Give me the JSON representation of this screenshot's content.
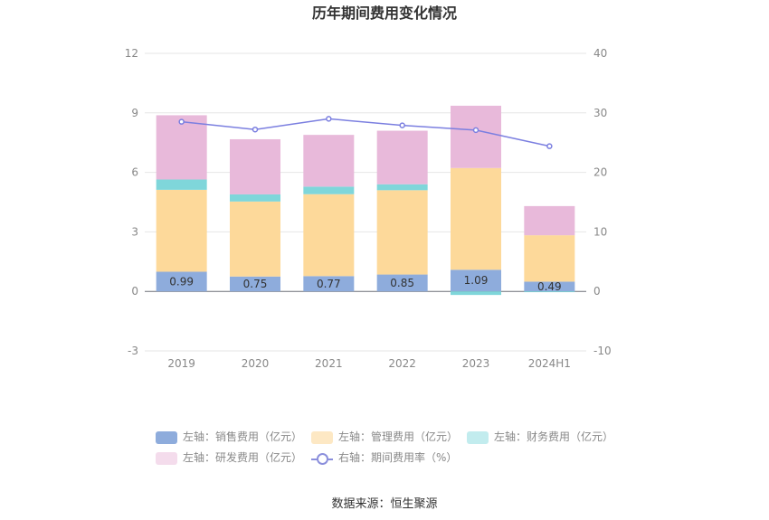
{
  "chart_data": {
    "type": "bar",
    "title": "历年期间费用变化情况",
    "categories": [
      "2019",
      "2020",
      "2021",
      "2022",
      "2023",
      "2024H1"
    ],
    "stacked": true,
    "left_axis": {
      "min": -3,
      "max": 12,
      "ticks": [
        -3,
        0,
        3,
        6,
        9,
        12
      ]
    },
    "right_axis": {
      "min": -10,
      "max": 40,
      "ticks": [
        -10,
        0,
        10,
        20,
        30,
        40
      ]
    },
    "series": [
      {
        "name": "左轴：销售费用（亿元）",
        "axis": "left",
        "type": "bar",
        "color": "#8eacdc",
        "values": [
          0.99,
          0.75,
          0.77,
          0.85,
          1.09,
          0.49
        ],
        "show_labels": true
      },
      {
        "name": "左轴：管理费用（亿元）",
        "axis": "left",
        "type": "bar",
        "color": "#fdd99a",
        "values": [
          4.13,
          3.78,
          4.13,
          4.25,
          5.13,
          2.34
        ]
      },
      {
        "name": "左轴：财务费用（亿元）",
        "axis": "left",
        "type": "bar",
        "color": "#7fd6da",
        "values": [
          0.52,
          0.36,
          0.38,
          0.3,
          -0.18,
          -0.04
        ]
      },
      {
        "name": "左轴：研发费用（亿元）",
        "axis": "left",
        "type": "bar",
        "color": "#e8b9da",
        "values": [
          3.24,
          2.78,
          2.61,
          2.7,
          3.14,
          1.47
        ]
      },
      {
        "name": "右轴：期间费用率（%）",
        "axis": "right",
        "type": "line",
        "color": "#7b7fe0",
        "values": [
          28.5,
          27.2,
          29.0,
          27.9,
          27.1,
          24.4
        ]
      }
    ],
    "legend_position": "bottom",
    "grid": true
  },
  "source_text": "数据来源：恒生聚源"
}
